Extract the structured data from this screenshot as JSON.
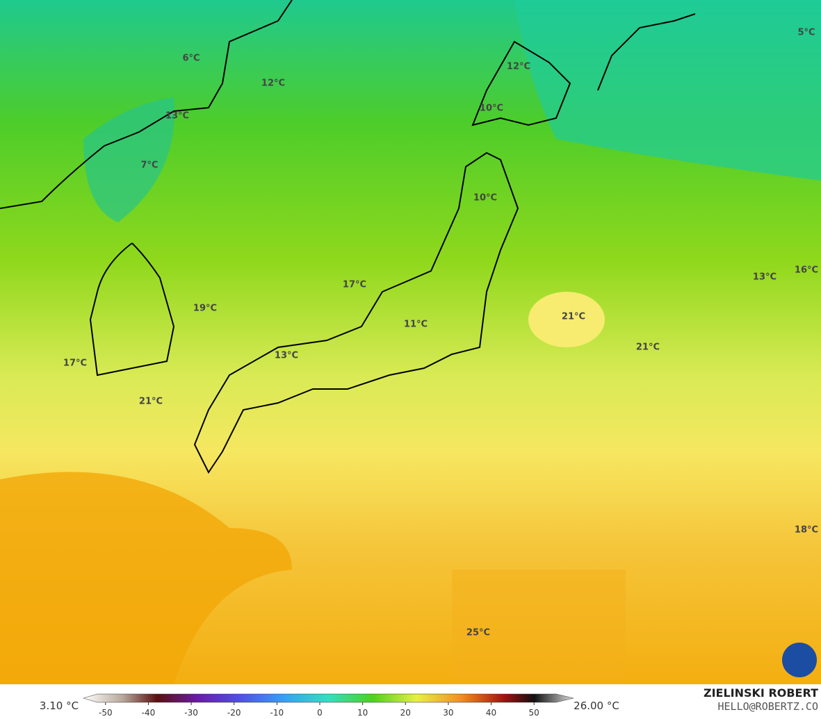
{
  "map": {
    "labels": [
      "5°C",
      "6°C",
      "12°C",
      "12°C",
      "10°C",
      "13°C",
      "7°C",
      "10°C",
      "17°C",
      "19°C",
      "11°C",
      "21°C",
      "13°C",
      "16°C",
      "17°C",
      "13°C",
      "21°C",
      "21°C",
      "18°C",
      "25°C"
    ]
  },
  "colorbar": {
    "range": [
      -55,
      55
    ],
    "ticks": [
      -50,
      -40,
      -30,
      -20,
      -10,
      0,
      10,
      20,
      30,
      40,
      50
    ],
    "min_label": "3.10 °C",
    "max_label": "26.00 °C"
  },
  "credit": {
    "author": "ZIELINSKI ROBERT",
    "contact": "HELLO@ROBERTZ.CO"
  }
}
